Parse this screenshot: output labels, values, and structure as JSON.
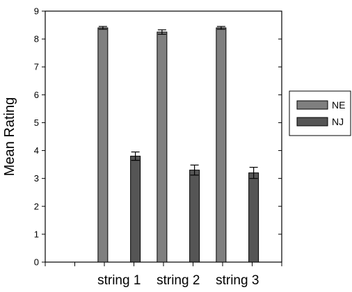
{
  "chart_data": {
    "type": "bar",
    "categories": [
      "string 1",
      "string 2",
      "string 3"
    ],
    "series": [
      {
        "name": "NE",
        "values": [
          8.4,
          8.25,
          8.4
        ],
        "errors": [
          0.05,
          0.08,
          0.05
        ],
        "color": "#7f7f7f"
      },
      {
        "name": "NJ",
        "values": [
          3.8,
          3.3,
          3.2
        ],
        "errors": [
          0.15,
          0.18,
          0.2
        ],
        "color": "#555555"
      }
    ],
    "ylabel": "Mean Rating",
    "xlabel": "",
    "ylim": [
      0,
      9
    ],
    "yticks": [
      0,
      1,
      2,
      3,
      4,
      5,
      6,
      7,
      8,
      9
    ],
    "grid": false,
    "legend_position": "right"
  }
}
